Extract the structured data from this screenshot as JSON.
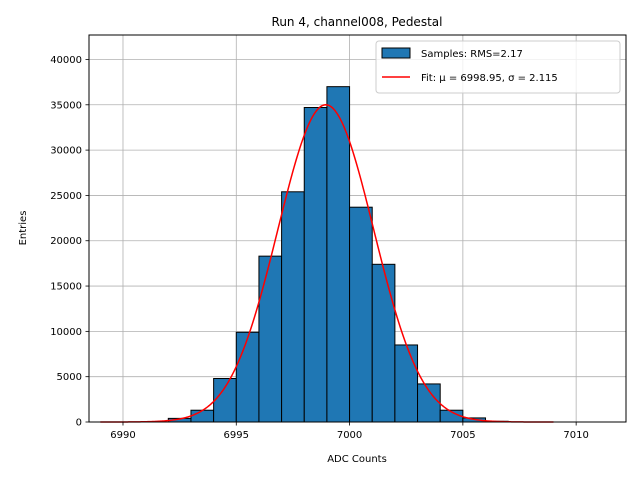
{
  "chart_data": {
    "type": "bar",
    "title": "Run 4, channel008, Pedestal",
    "xlabel": "ADC Counts",
    "ylabel": "Entries",
    "xlim": [
      6988.5,
      7012.2
    ],
    "ylim": [
      0,
      42700
    ],
    "grid": true,
    "legend_position": "top-right",
    "xticks": [
      6990,
      6995,
      7000,
      7005,
      7010
    ],
    "yticks": [
      0,
      5000,
      10000,
      15000,
      20000,
      25000,
      30000,
      35000,
      40000
    ],
    "histogram": {
      "name": "Samples: RMS=2.17",
      "color": "#1f77b4",
      "edgecolor": "#000000",
      "bin_width": 1,
      "bins": [
        {
          "start": 6992,
          "count": 400
        },
        {
          "start": 6993,
          "count": 1300
        },
        {
          "start": 6994,
          "count": 4800
        },
        {
          "start": 6995,
          "count": 9900
        },
        {
          "start": 6996,
          "count": 18300
        },
        {
          "start": 6997,
          "count": 25400
        },
        {
          "start": 6998,
          "count": 34700
        },
        {
          "start": 6999,
          "count": 37000
        },
        {
          "start": 7000,
          "count": 23700
        },
        {
          "start": 7001,
          "count": 17400
        },
        {
          "start": 7002,
          "count": 8500
        },
        {
          "start": 7003,
          "count": 4200
        },
        {
          "start": 7004,
          "count": 1300
        },
        {
          "start": 7005,
          "count": 450
        },
        {
          "start": 7006,
          "count": 80
        }
      ]
    },
    "fit": {
      "name": "Fit: μ = 6998.95, σ = 2.115",
      "color": "#ff0000",
      "mu": 6998.95,
      "sigma": 2.115,
      "amplitude": 35000,
      "x_range": [
        6989,
        7009
      ]
    }
  }
}
